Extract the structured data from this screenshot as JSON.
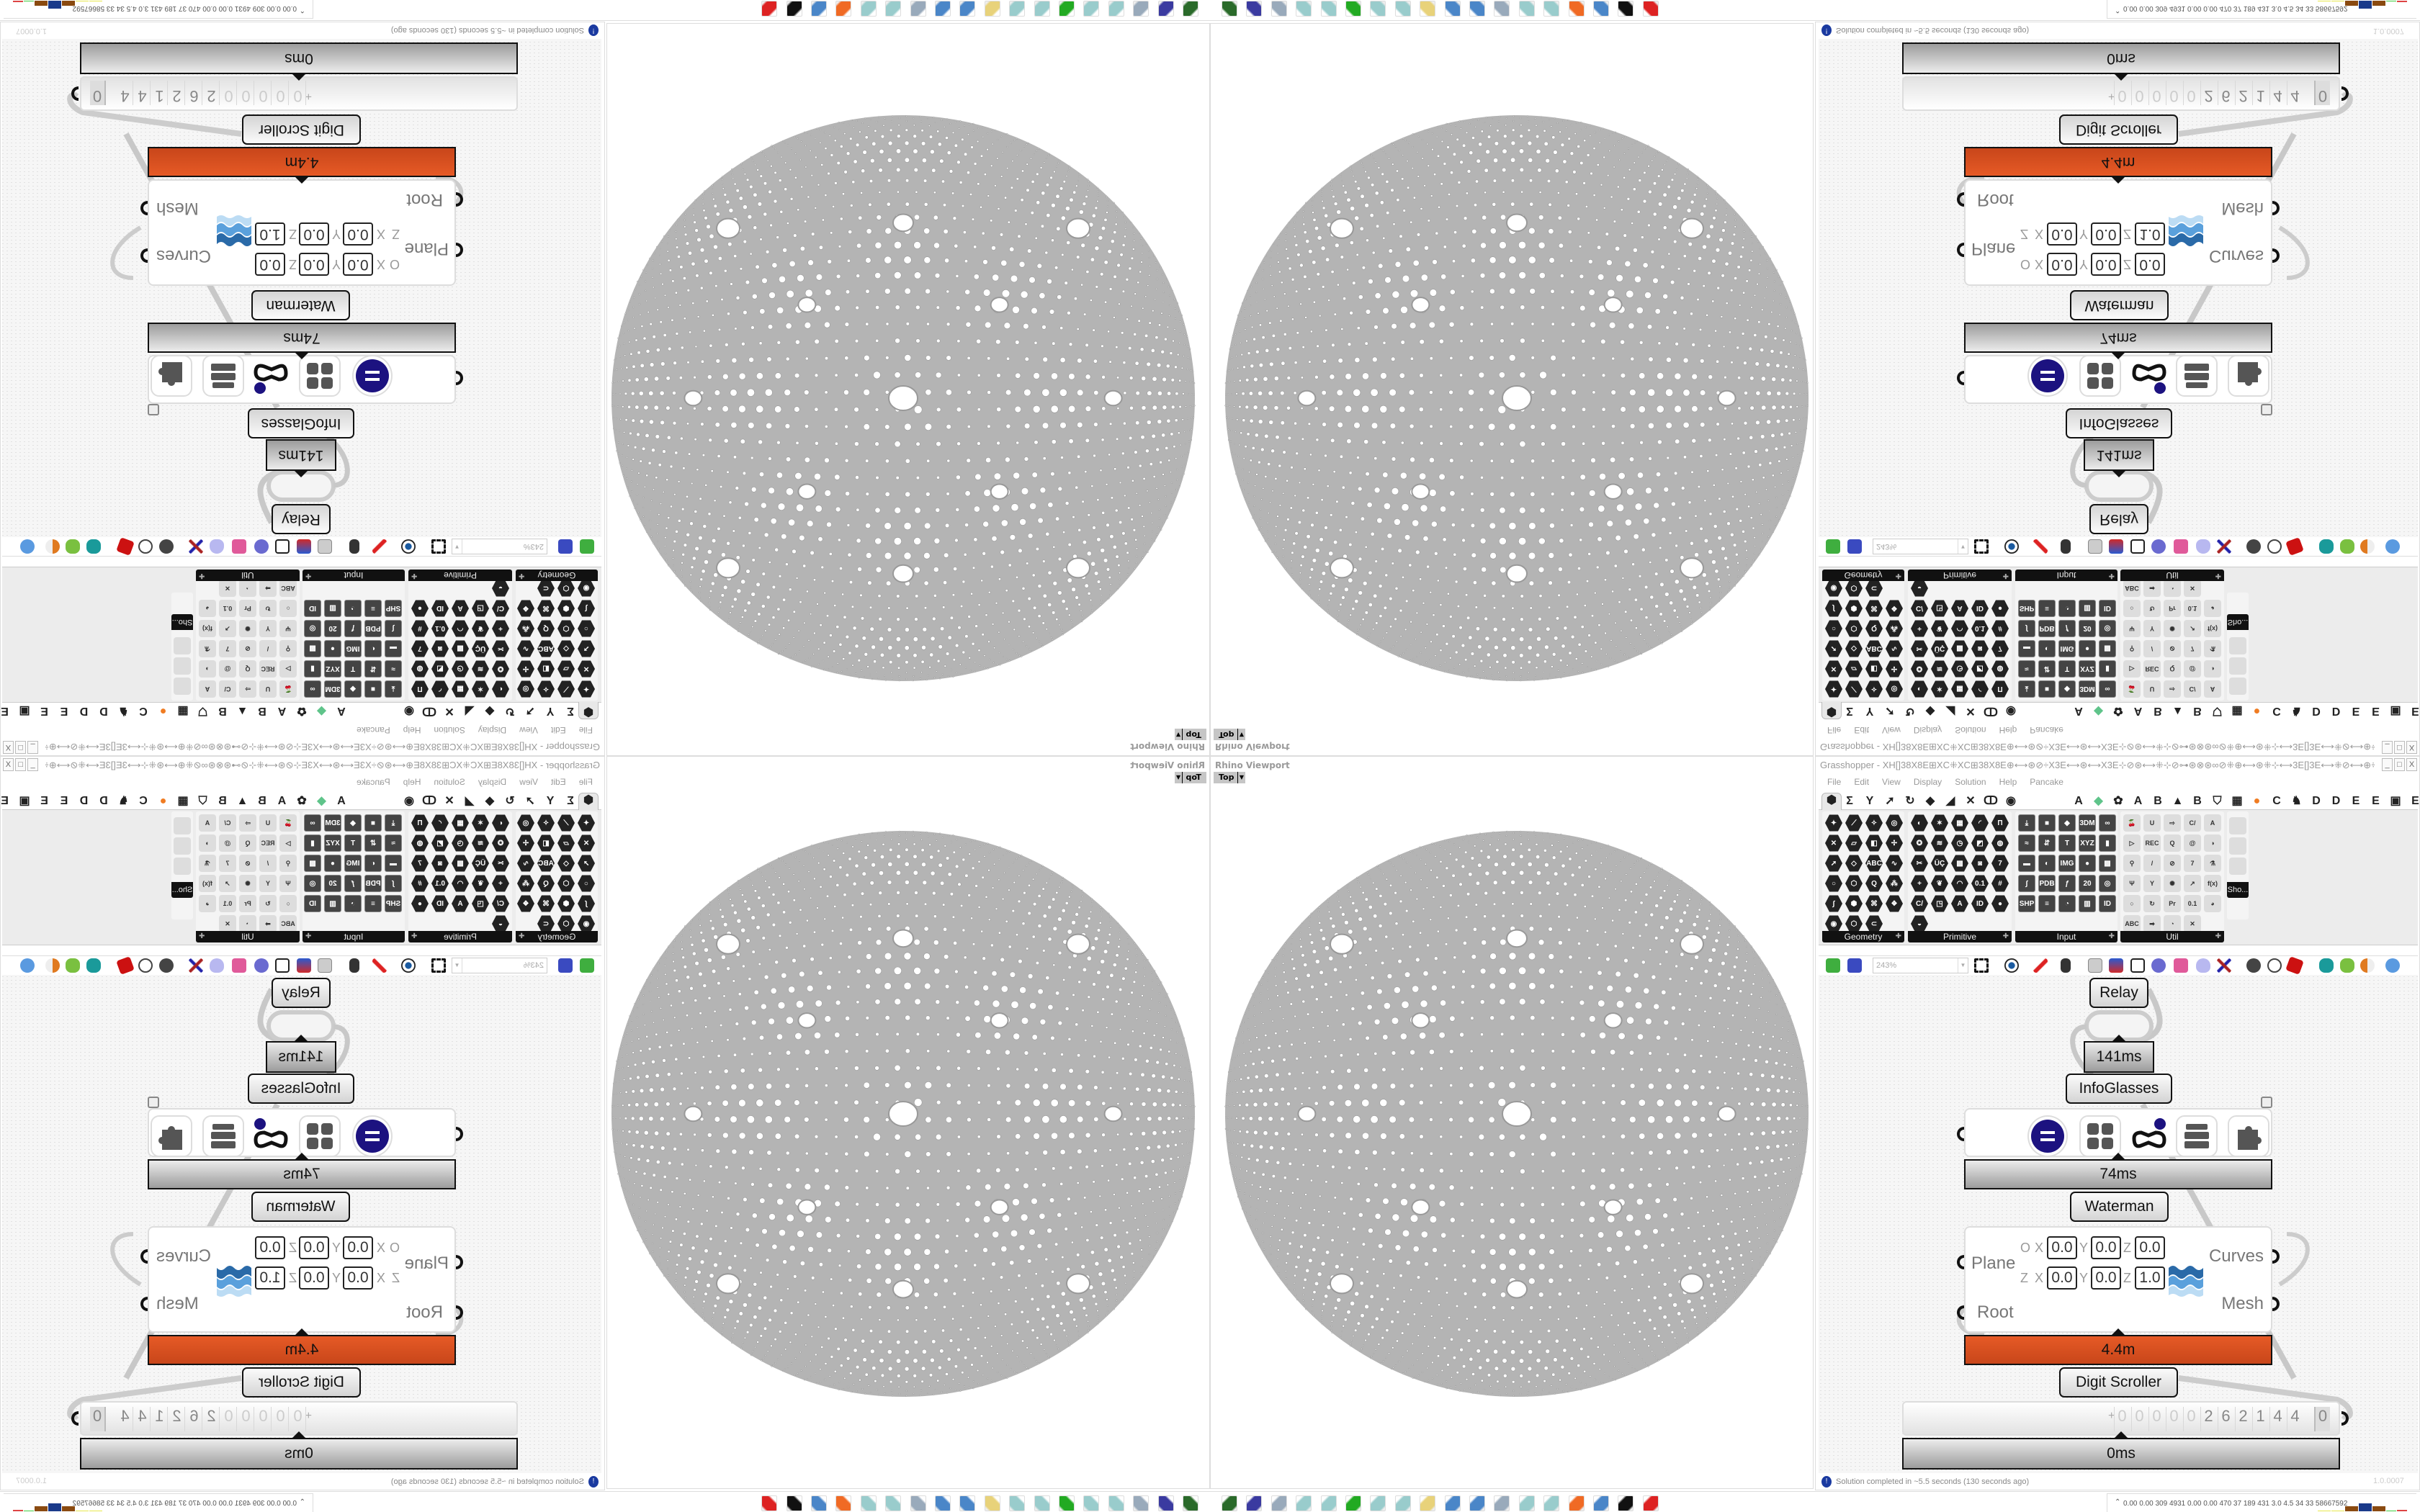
{
  "viewport": {
    "title": "Rhino Viewport",
    "view": "Top"
  },
  "grasshopper": {
    "title": "Grasshopper - XH[]38X8E⊞XC⁜XC⊞38X8E⊕⟷⊛⊘÷X3E⟷⊛⟷X3E⊹⊘⊛⟷⁜⊹⊘⊶⊛⊗⊛∞⊘⁜⊕⟷⊛⁜⊹⟷3E[]3E⟷⁜⊘⟷⊕⁜⊹⊘⊶⊛⊗⊛∞⊘⁜⊕⟷⊛⊘÷X3E⟷...",
    "window_buttons": {
      "minimize": "_",
      "maximize": "□",
      "close": "X"
    },
    "menu": [
      "File",
      "Edit",
      "View",
      "Display",
      "Solution",
      "Help",
      "Pancake"
    ],
    "tabs": [
      {
        "glyph": "⬢",
        "name": "params-tab",
        "selected": true
      },
      {
        "glyph": "Σ",
        "name": "maths-tab"
      },
      {
        "glyph": "Y",
        "name": "sets-tab"
      },
      {
        "glyph": "➚",
        "name": "vector-tab"
      },
      {
        "glyph": "↻",
        "name": "curve-tab"
      },
      {
        "glyph": "◆",
        "name": "surface-tab"
      },
      {
        "glyph": "◢",
        "name": "mesh-tab"
      },
      {
        "glyph": "✕",
        "name": "intersect-tab"
      },
      {
        "glyph": "ↀ",
        "name": "transform-tab"
      },
      {
        "glyph": "◉",
        "name": "display-tab"
      },
      {
        "glyph": "A",
        "name": "tab-a1"
      },
      {
        "glyph": "◆",
        "name": "gem-tab",
        "color": "#5fc48a"
      },
      {
        "glyph": "✿",
        "name": "bug-tab"
      },
      {
        "glyph": "A",
        "name": "tab-a2"
      },
      {
        "glyph": "B",
        "name": "tab-b1"
      },
      {
        "glyph": "▲",
        "name": "mountain-tab"
      },
      {
        "glyph": "B",
        "name": "tab-b2"
      },
      {
        "glyph": "⛉",
        "name": "shield-tab"
      },
      {
        "glyph": "▦",
        "name": "grid-tab"
      },
      {
        "glyph": "●",
        "name": "orange-circle-tab",
        "color": "#f07c22"
      },
      {
        "glyph": "C",
        "name": "tab-c"
      },
      {
        "glyph": "♞",
        "name": "rooster-tab"
      },
      {
        "glyph": "D",
        "name": "tab-d1"
      },
      {
        "glyph": "D",
        "name": "tab-d2"
      },
      {
        "glyph": "E",
        "name": "tab-e1"
      },
      {
        "glyph": "E",
        "name": "tab-e2"
      },
      {
        "glyph": "▣",
        "name": "chip-tab"
      },
      {
        "glyph": "E",
        "name": "tab-e3"
      }
    ],
    "ribbon": {
      "panels": [
        {
          "label": "Geometry",
          "kind": "hex",
          "cols": 4,
          "icons": [
            "✦",
            "⟋",
            "✧",
            "◎",
            "✕",
            "▱",
            "◧",
            "✢",
            "➚",
            "◇",
            "ABC",
            "∿",
            "○",
            "⬡",
            "Q",
            "⁂",
            "∫",
            "⬢",
            "⌘",
            "❖",
            "◉",
            "⬡",
            "⊂"
          ]
        },
        {
          "label": "Primitive",
          "kind": "hex",
          "cols": 5,
          "icons": [
            "◐",
            "✶",
            "▦",
            "◜",
            "Π",
            "✪",
            "≋",
            "◷",
            "◩",
            "◍",
            "✂",
            "ÜÇ",
            "▩",
            "◙",
            "7",
            "+",
            "❦",
            "◠",
            "0.1",
            "#",
            "C/",
            "◳",
            "A",
            "ID",
            "●",
            "◒"
          ]
        },
        {
          "label": "Input",
          "kind": "box",
          "cols": 5,
          "icons": [
            "⤓",
            "■",
            "◆",
            "3DM",
            "∞",
            "≈",
            "⇵",
            "T",
            "XYZ",
            "▮",
            "▬",
            "◐",
            "IMG",
            "●",
            "▩",
            "∫",
            "PDB",
            "ƒ",
            "20",
            "◎",
            "SHP",
            "≡",
            "◔",
            "▥",
            "ID"
          ]
        },
        {
          "label": "Util",
          "kind": "util",
          "cols": 5,
          "icons": [
            "🍒",
            "U",
            "⇨",
            "C/",
            "A",
            "▷",
            "REC",
            "Q",
            "@",
            "◑",
            "⚲",
            "/",
            "⊘",
            "7",
            "⚗",
            "Ψ",
            "Y",
            "✺",
            "↗",
            "f(x)",
            "○",
            "↻",
            "Pr",
            "0.1",
            "◕",
            "ABC",
            "➡",
            "◔",
            "✕"
          ]
        }
      ],
      "show_label": "Sho..."
    },
    "toolbar": {
      "zoom": "243%"
    },
    "canvas": {
      "relay": "Relay",
      "relay_time": "141ms",
      "infoglasses": "InfoGlasses",
      "component_time": "74ms",
      "waterman": "Waterman",
      "plane_input": "Plane",
      "root_input": "Root",
      "curves_output": "Curves",
      "mesh_output": "Mesh",
      "origin_label": "O",
      "zaxis_label": "Z",
      "axes": [
        "X",
        "Y",
        "Z"
      ],
      "origin_values": [
        "0.0",
        "0.0",
        "0.0"
      ],
      "zaxis_values": [
        "0.0",
        "0.0",
        "1.0"
      ],
      "waterman_time": "4.4m",
      "digit_scroller": "Digit Scroller",
      "scroller_sign": "+",
      "scroller_digits": [
        "0",
        "0",
        "0",
        "0",
        "0",
        "2",
        "6",
        "2",
        "1",
        "4",
        "4"
      ],
      "scroller_decimal": "0",
      "scroller_time": "0ms"
    },
    "status": {
      "message": "Solution completed in ~5.5 seconds (130 seconds ago)",
      "version": "1.0.0007"
    }
  },
  "taskbar": {
    "icons": [
      "rhino-launcher-icon",
      "floppy-64-icon",
      "notepad-icon",
      "notepad-icon",
      "notepad-icon",
      "monitor-icon",
      "notepad-icon",
      "notepad-icon",
      "folder-icon",
      "control-panel-icon",
      "calculator-icon",
      "notepad-icon",
      "notepad-icon",
      "notepad-icon",
      "firefox-icon",
      "calculator-icon",
      "inkscape-icon",
      "red-app-icon"
    ],
    "icon_colors": [
      "#2a6a2a",
      "#3a3aa0",
      "#9ab",
      "#9cc",
      "#9cc",
      "#2a2",
      "#9cc",
      "#9cc",
      "#e8d27a",
      "#4a86c8",
      "#4a86c8",
      "#9ab",
      "#9cc",
      "#9cc",
      "#f06a24",
      "#4a86c8",
      "#111",
      "#d22"
    ],
    "tray_stats": "0.00 0.00 309 4931 0.00 0.00 470 37 189 431 3.0 4.5 34 33 58667592",
    "tray_bar_colors": [
      "#e8e850",
      "#e8e850",
      "#8a4a10",
      "#1a3a8a",
      "#8a4a10",
      "#4c4",
      "#d44"
    ]
  }
}
